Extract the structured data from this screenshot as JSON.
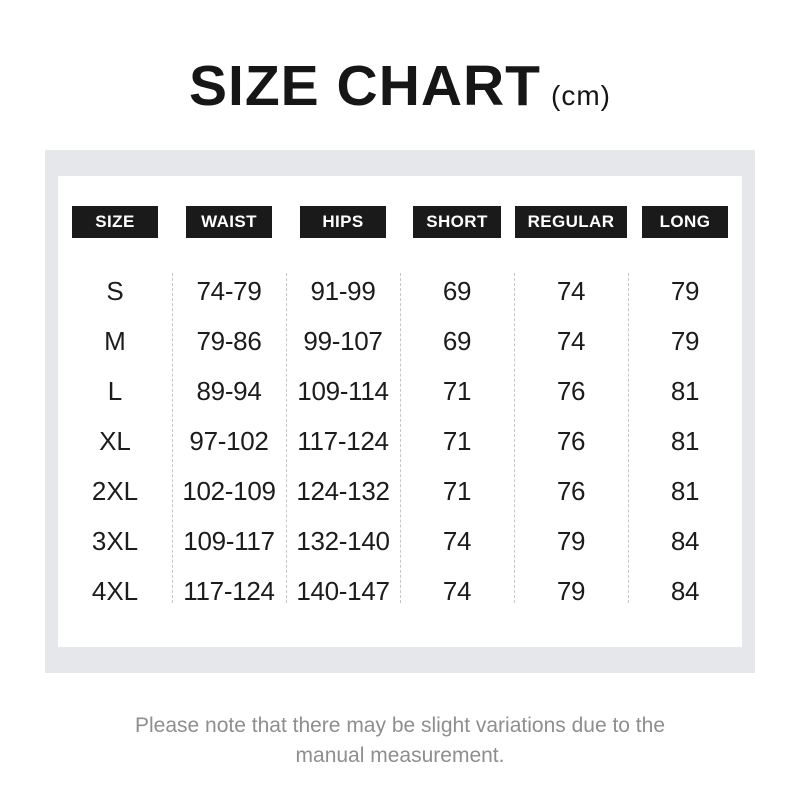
{
  "title": {
    "main": "SIZE CHART",
    "unit": "(cm)"
  },
  "chart_data": {
    "type": "table",
    "title": "SIZE CHART (cm)",
    "columns": [
      "SIZE",
      "WAIST",
      "HIPS",
      "SHORT",
      "REGULAR",
      "LONG"
    ],
    "rows": [
      [
        "S",
        "74-79",
        "91-99",
        "69",
        "74",
        "79"
      ],
      [
        "M",
        "79-86",
        "99-107",
        "69",
        "74",
        "79"
      ],
      [
        "L",
        "89-94",
        "109-114",
        "71",
        "76",
        "81"
      ],
      [
        "XL",
        "97-102",
        "117-124",
        "71",
        "76",
        "81"
      ],
      [
        "2XL",
        "102-109",
        "124-132",
        "71",
        "76",
        "81"
      ],
      [
        "3XL",
        "109-117",
        "132-140",
        "74",
        "79",
        "84"
      ],
      [
        "4XL",
        "117-124",
        "140-147",
        "74",
        "79",
        "84"
      ]
    ]
  },
  "footer": {
    "note": "Please note that there may be slight variations due to the manual measurement."
  },
  "colors": {
    "ink": "#161616",
    "badge_bg": "#1a1a1a",
    "badge_text": "#ffffff",
    "frame_bg": "#e6e7eb",
    "separator": "#c6c6c6",
    "note_text": "#8e8e8e"
  }
}
